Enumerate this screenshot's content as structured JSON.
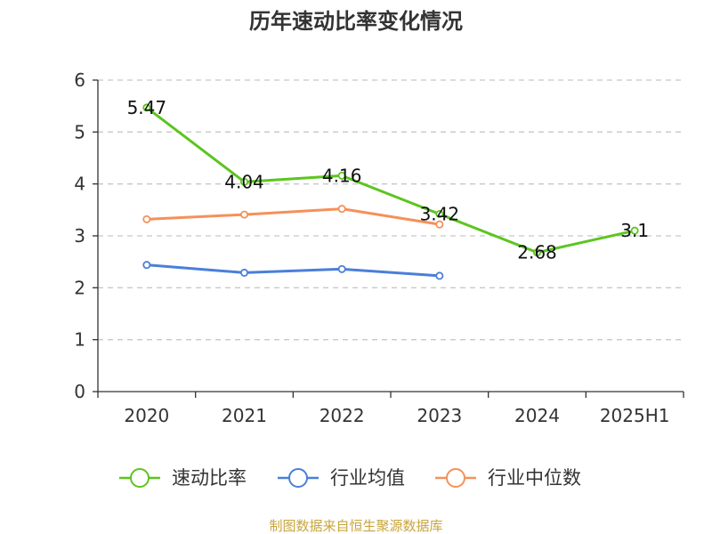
{
  "chart_data": {
    "type": "line",
    "title": "历年速动比率变化情况",
    "categories": [
      "2020",
      "2021",
      "2022",
      "2023",
      "2024",
      "2025H1"
    ],
    "ylim": [
      0,
      6
    ],
    "yticks": [
      "0",
      "1",
      "2",
      "3",
      "4",
      "5",
      "6"
    ],
    "grid": true,
    "legend_position": "bottom",
    "series": [
      {
        "name": "速动比率",
        "color": "#5cc51f",
        "values": [
          5.47,
          4.04,
          4.16,
          3.42,
          2.68,
          3.1
        ],
        "labels": [
          "5.47",
          "4.04",
          "4.16",
          "3.42",
          "2.68",
          "3.1"
        ]
      },
      {
        "name": "行业均值",
        "color": "#4a7fd9",
        "values": [
          2.44,
          2.29,
          2.36,
          2.23,
          null,
          null
        ]
      },
      {
        "name": "行业中位数",
        "color": "#f4915a",
        "values": [
          3.32,
          3.41,
          3.52,
          3.22,
          null,
          null
        ]
      }
    ]
  },
  "source": "制图数据来自恒生聚源数据库"
}
